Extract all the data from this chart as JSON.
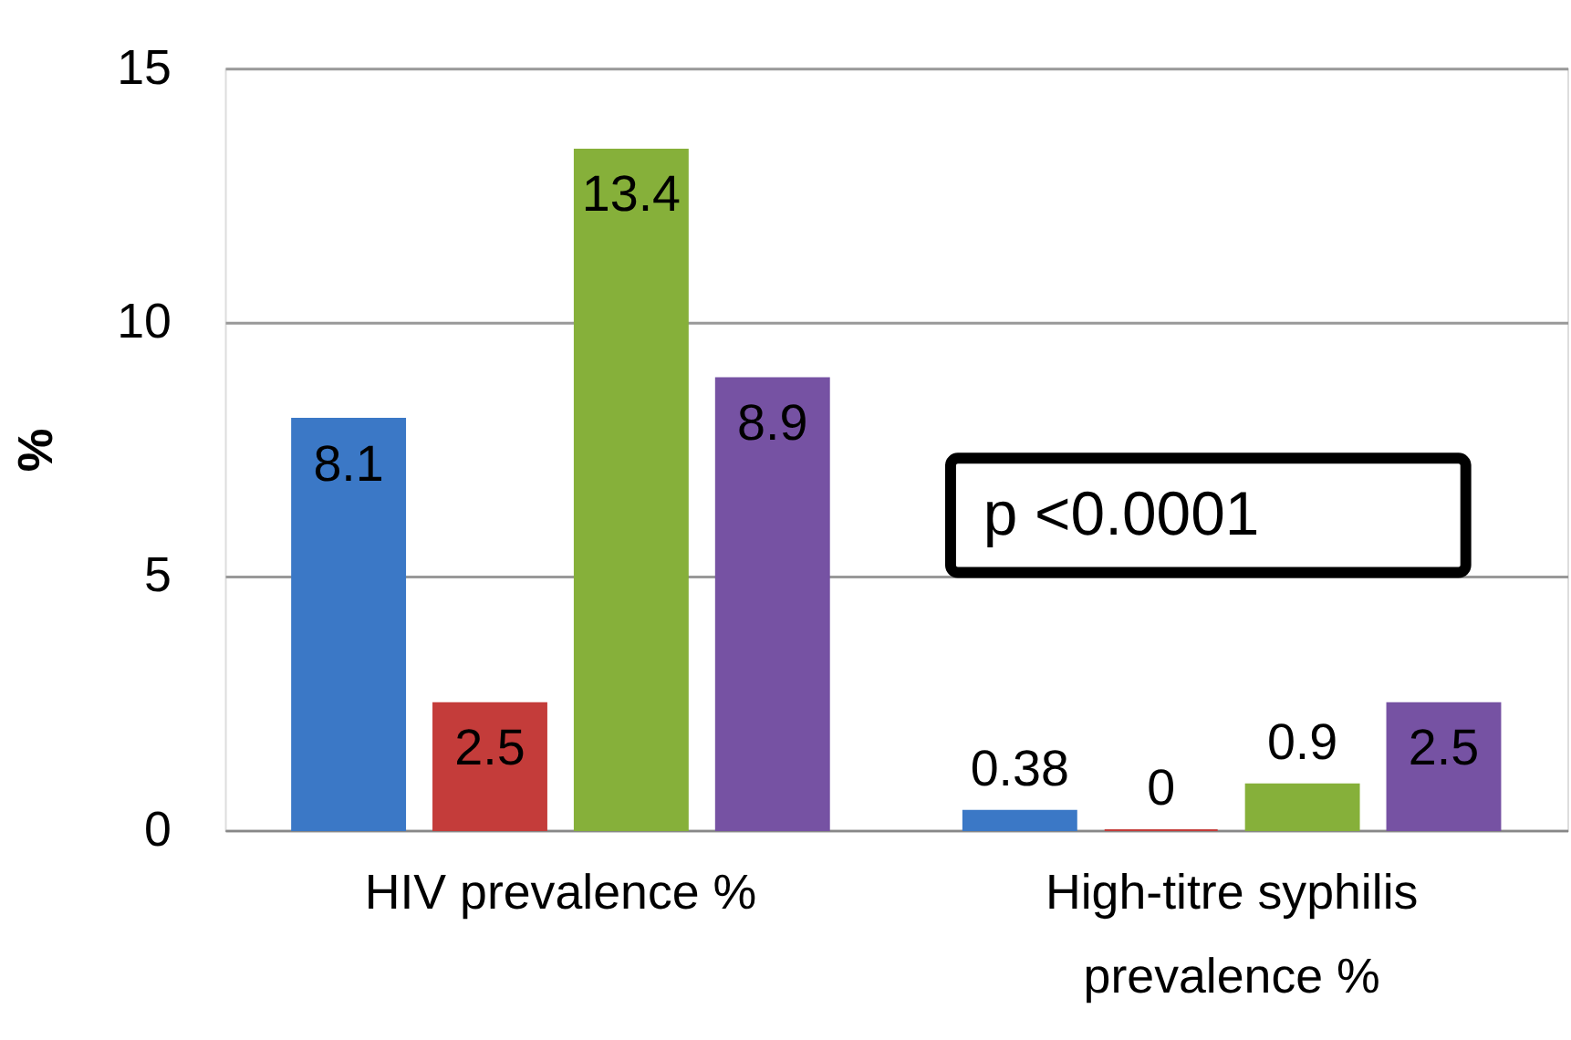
{
  "chart_data": {
    "type": "bar",
    "ylabel": "%",
    "categories": [
      "HIV prevalence %",
      "High-titre syphilis prevalence %"
    ],
    "series": [
      {
        "color": "#3b78c6",
        "values": [
          8.1,
          0.38
        ]
      },
      {
        "color": "#c43c3a",
        "values": [
          2.5,
          0
        ]
      },
      {
        "color": "#86b03a",
        "values": [
          13.4,
          0.9
        ]
      },
      {
        "color": "#7652a3",
        "values": [
          8.9,
          2.5
        ]
      }
    ],
    "ylim": [
      0,
      15
    ],
    "yticks": [
      0,
      5,
      10,
      15
    ],
    "grid": "y",
    "data_labels": true,
    "legend": false,
    "annotations": [
      "p <0.0001"
    ]
  }
}
